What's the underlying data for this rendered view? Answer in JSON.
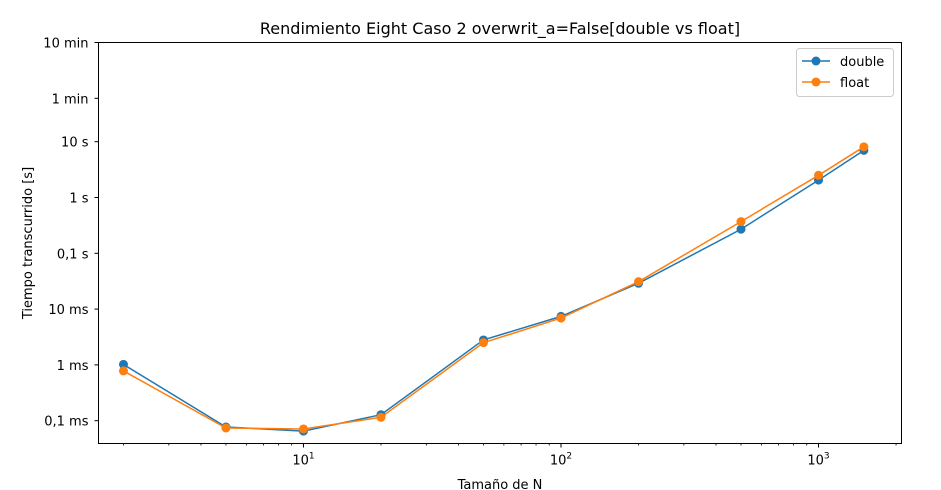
{
  "chart_data": {
    "type": "line",
    "title": "Rendimiento Eight Caso 2 overwrit_a=False[double vs float]",
    "xlabel": "Tamaño de N",
    "ylabel": "Tiempo transcurrido [s]",
    "xscale": "log",
    "yscale": "log",
    "xlim": [
      1.6,
      2100
    ],
    "ylim": [
      3.9e-05,
      600
    ],
    "grid": false,
    "legend_position": "top-right",
    "x_ticks": [
      {
        "value": 10,
        "base": "10",
        "exp": "1"
      },
      {
        "value": 100,
        "base": "10",
        "exp": "2"
      },
      {
        "value": 1000,
        "base": "10",
        "exp": "3"
      }
    ],
    "y_ticks": [
      {
        "value": 0.0001,
        "label": "0,1 ms"
      },
      {
        "value": 0.001,
        "label": "1 ms"
      },
      {
        "value": 0.01,
        "label": "10 ms"
      },
      {
        "value": 0.1,
        "label": "0,1 s"
      },
      {
        "value": 1,
        "label": "1 s"
      },
      {
        "value": 10,
        "label": "10 s"
      },
      {
        "value": 60,
        "label": "1 min"
      },
      {
        "value": 600,
        "label": "10 min"
      }
    ],
    "x": [
      2,
      5,
      10,
      20,
      50,
      100,
      200,
      500,
      1000,
      1500
    ],
    "series": [
      {
        "name": "double",
        "color": "#1f77b4",
        "values": [
          0.00102,
          7.7e-05,
          6.5e-05,
          0.000128,
          0.0028,
          0.0074,
          0.029,
          0.27,
          2.05,
          7.0
        ]
      },
      {
        "name": "float",
        "color": "#ff7f0e",
        "values": [
          0.00078,
          7.4e-05,
          7.1e-05,
          0.000115,
          0.0025,
          0.0069,
          0.031,
          0.37,
          2.5,
          8.1
        ]
      }
    ]
  }
}
